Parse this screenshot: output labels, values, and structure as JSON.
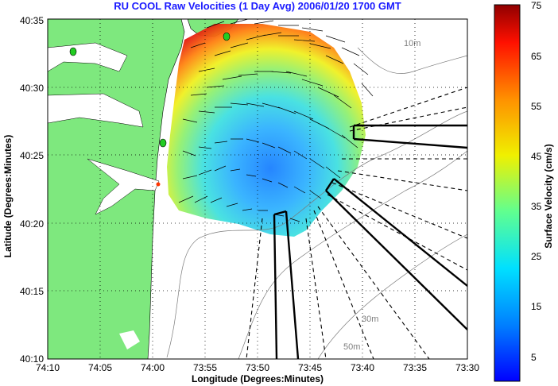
{
  "title": "RU COOL Raw Velocities (1 Day Avg) 2006/01/20 1700 GMT",
  "xlabel": "Longitude (Degrees:Minutes)",
  "ylabel": "Latitude (Degrees:Minutes)",
  "x_ticks": [
    "74:10",
    "74:05",
    "74:00",
    "73:55",
    "73:50",
    "73:45",
    "73:40",
    "73:35",
    "73:30"
  ],
  "y_ticks": [
    "40:35",
    "40:30",
    "40:25",
    "40:20",
    "40:15",
    "40:10"
  ],
  "depth_labels": [
    "10m",
    "30m",
    "50m"
  ],
  "colorbar": {
    "label": "Surface Velocity (cm/s)",
    "ticks": [
      "75",
      "65",
      "55",
      "45",
      "35",
      "25",
      "15",
      "5"
    ],
    "range": [
      0,
      75
    ]
  },
  "colors": {
    "title": "#1a1aff",
    "land": "#7ee87e",
    "background": "#ffffff"
  }
}
